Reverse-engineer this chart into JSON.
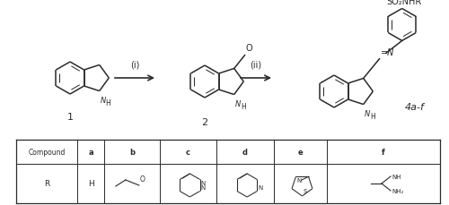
{
  "bg_color": "#ffffff",
  "line_color": "#2a2a2a",
  "font_color": "#1a1a1a",
  "table_headers": [
    "Compound",
    "a",
    "b",
    "c",
    "d",
    "e",
    "f"
  ],
  "arrow1_label": "(i)",
  "arrow2_label": "(ii)",
  "label1": "1",
  "label2": "2",
  "label3": "4a-f",
  "so2nhr": "SO₂NHR",
  "nh_text": "N",
  "h_text": "H"
}
